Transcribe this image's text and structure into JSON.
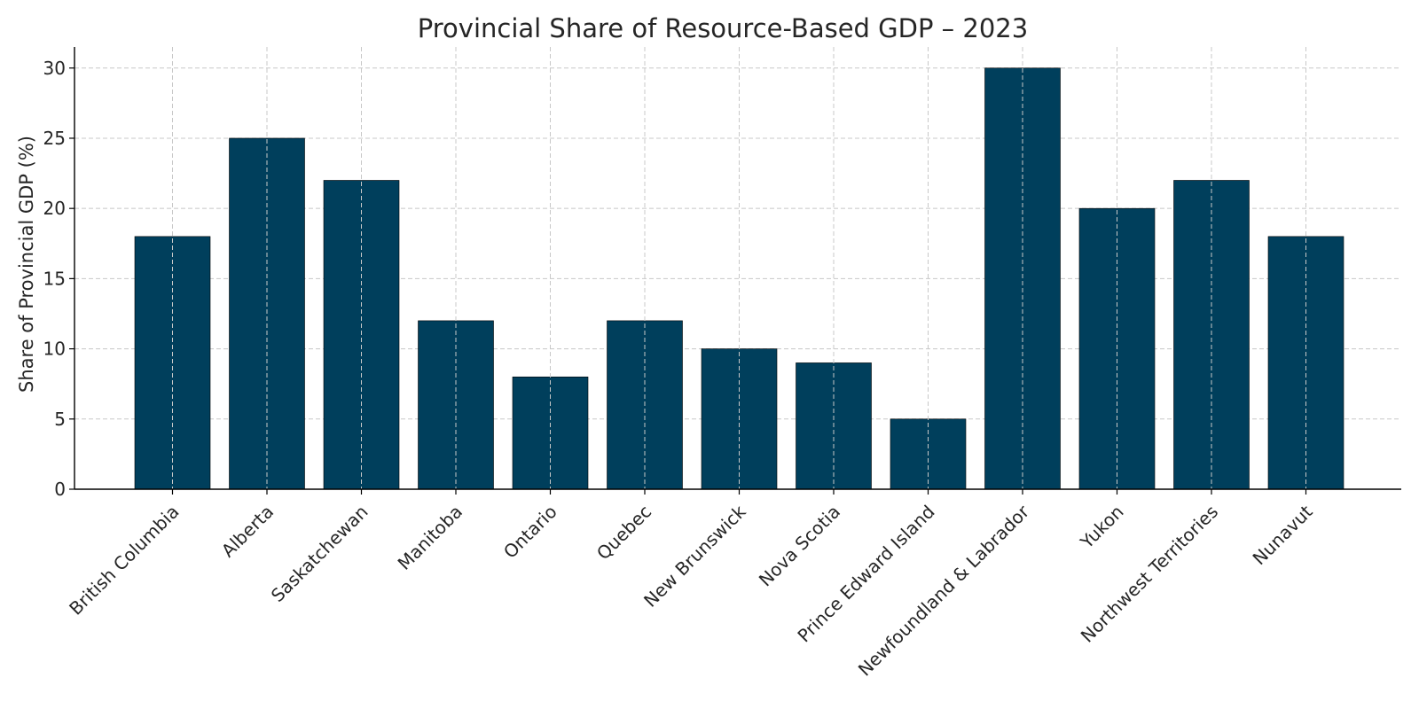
{
  "chart_data": {
    "type": "bar",
    "title": "Provincial Share of Resource-Based GDP – 2023",
    "xlabel": "",
    "ylabel": "Share of Provincial GDP (%)",
    "categories": [
      "British Columbia",
      "Alberta",
      "Saskatchewan",
      "Manitoba",
      "Ontario",
      "Quebec",
      "New Brunswick",
      "Nova Scotia",
      "Prince Edward Island",
      "Newfoundland & Labrador",
      "Yukon",
      "Northwest Territories",
      "Nunavut"
    ],
    "values": [
      18,
      25,
      22,
      12,
      8,
      12,
      10,
      9,
      5,
      30,
      20,
      22,
      18
    ],
    "ylim": [
      0,
      31.5
    ],
    "yticks": [
      0,
      5,
      10,
      15,
      20,
      25,
      30
    ],
    "grid": true,
    "bar_color": "#003f5c",
    "legend": "none"
  }
}
